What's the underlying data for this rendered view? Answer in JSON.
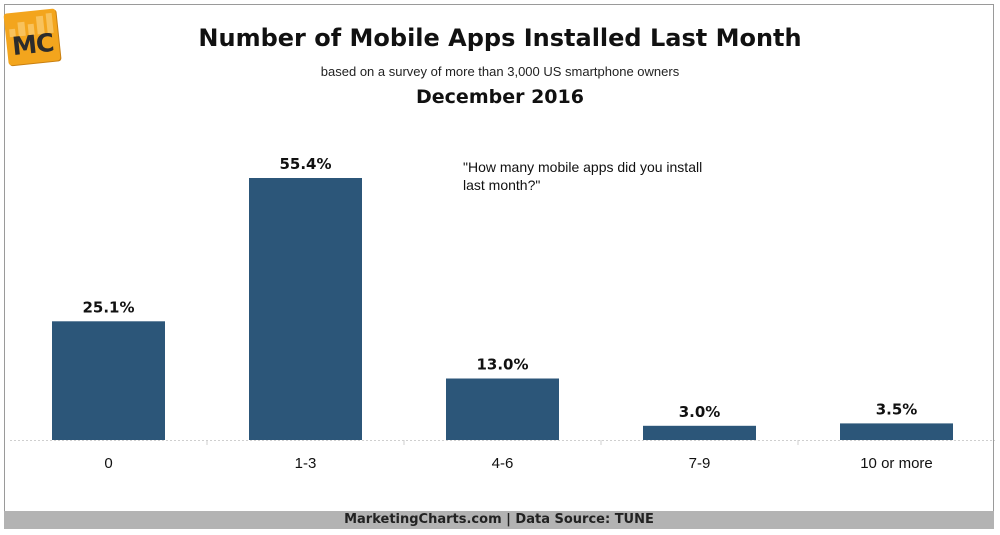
{
  "logo": {
    "text": "MC"
  },
  "header": {
    "title": "Number of Mobile Apps Installed Last Month",
    "subtitle": "based on a survey of more than 3,000 US smartphone owners",
    "date": "December 2016"
  },
  "annotation": "\"How many mobile apps did you install last month?\"",
  "footer": "MarketingCharts.com | Data Source: TUNE",
  "colors": {
    "bar": "#2c5679",
    "footer_bg": "#b3b3b3",
    "logo": "#f3a51d"
  },
  "chart_data": {
    "type": "bar",
    "title": "Number of Mobile Apps Installed Last Month",
    "categories": [
      "0",
      "1-3",
      "4-6",
      "7-9",
      "10 or more"
    ],
    "values": [
      25.1,
      55.4,
      13.0,
      3.0,
      3.5
    ],
    "value_labels": [
      "25.1%",
      "55.4%",
      "13.0%",
      "3.0%",
      "3.5%"
    ],
    "ylim": [
      0,
      55.4
    ],
    "grid": false,
    "legend": "none",
    "xlabel": "",
    "ylabel": ""
  }
}
